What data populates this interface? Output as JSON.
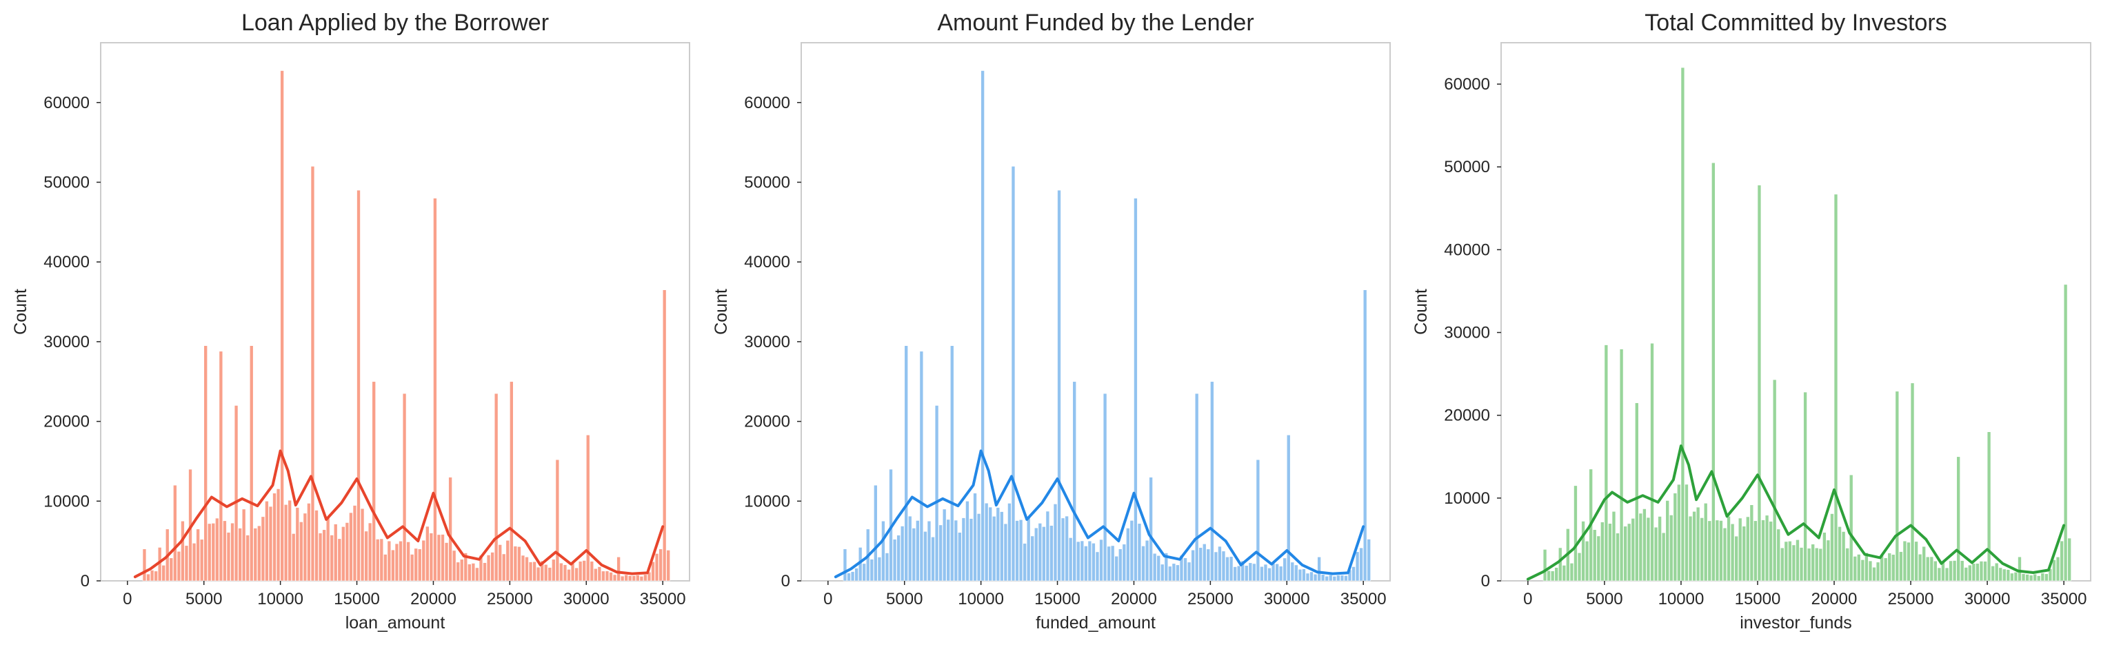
{
  "chart_data": [
    {
      "type": "histogram",
      "title": "Loan Applied by the Borrower",
      "xlabel": "loan_amount",
      "ylabel": "Count",
      "xlim": [
        -1750,
        36750
      ],
      "ylim": [
        0,
        67500
      ],
      "xticks": [
        0,
        5000,
        10000,
        15000,
        20000,
        25000,
        30000,
        35000
      ],
      "yticks": [
        0,
        10000,
        20000,
        30000,
        40000,
        50000,
        60000
      ],
      "grid": false,
      "colors": {
        "bar": "#f9a08a",
        "kde": "#e8452c"
      },
      "peaks": [
        [
          1000,
          4000
        ],
        [
          2000,
          4200
        ],
        [
          2500,
          6500
        ],
        [
          3000,
          12000
        ],
        [
          3500,
          7500
        ],
        [
          4000,
          14000
        ],
        [
          5000,
          29500
        ],
        [
          6000,
          28800
        ],
        [
          7000,
          22000
        ],
        [
          7500,
          9000
        ],
        [
          8000,
          29500
        ],
        [
          9000,
          10000
        ],
        [
          9500,
          11000
        ],
        [
          10000,
          64000
        ],
        [
          11000,
          9200
        ],
        [
          12000,
          52000
        ],
        [
          13000,
          8000
        ],
        [
          14000,
          6800
        ],
        [
          15000,
          49000
        ],
        [
          16000,
          25000
        ],
        [
          17000,
          5000
        ],
        [
          18000,
          23500
        ],
        [
          19000,
          4000
        ],
        [
          20000,
          48000
        ],
        [
          21000,
          13000
        ],
        [
          22000,
          3500
        ],
        [
          23000,
          3200
        ],
        [
          24000,
          23500
        ],
        [
          25000,
          25000
        ],
        [
          26000,
          3000
        ],
        [
          27000,
          2500
        ],
        [
          28000,
          15200
        ],
        [
          29000,
          2200
        ],
        [
          30000,
          18300
        ],
        [
          32000,
          3000
        ],
        [
          35000,
          36500
        ]
      ],
      "kde": [
        [
          500,
          500
        ],
        [
          1500,
          1500
        ],
        [
          2500,
          2900
        ],
        [
          3500,
          4900
        ],
        [
          4500,
          7800
        ],
        [
          5500,
          10500
        ],
        [
          6500,
          9300
        ],
        [
          7500,
          10300
        ],
        [
          8500,
          9400
        ],
        [
          9500,
          12000
        ],
        [
          10000,
          16300
        ],
        [
          10500,
          13800
        ],
        [
          11000,
          9500
        ],
        [
          12000,
          13100
        ],
        [
          13000,
          7700
        ],
        [
          14000,
          9800
        ],
        [
          15000,
          12800
        ],
        [
          16000,
          8900
        ],
        [
          17000,
          5400
        ],
        [
          18000,
          6800
        ],
        [
          19000,
          5000
        ],
        [
          20000,
          11000
        ],
        [
          21000,
          5800
        ],
        [
          22000,
          3100
        ],
        [
          23000,
          2700
        ],
        [
          24000,
          5200
        ],
        [
          25000,
          6600
        ],
        [
          26000,
          5000
        ],
        [
          27000,
          2000
        ],
        [
          28000,
          3600
        ],
        [
          29000,
          2100
        ],
        [
          30000,
          3800
        ],
        [
          31000,
          2000
        ],
        [
          32000,
          1100
        ],
        [
          33000,
          900
        ],
        [
          34000,
          1000
        ],
        [
          35000,
          6800
        ]
      ]
    },
    {
      "type": "histogram",
      "title": "Amount Funded by the Lender",
      "xlabel": "funded_amount",
      "ylabel": "Count",
      "xlim": [
        -1750,
        36750
      ],
      "ylim": [
        0,
        67500
      ],
      "xticks": [
        0,
        5000,
        10000,
        15000,
        20000,
        25000,
        30000,
        35000
      ],
      "yticks": [
        0,
        10000,
        20000,
        30000,
        40000,
        50000,
        60000
      ],
      "grid": false,
      "colors": {
        "bar": "#92c3f0",
        "kde": "#2287e6"
      },
      "peaks": [
        [
          1000,
          4000
        ],
        [
          2000,
          4200
        ],
        [
          2500,
          6500
        ],
        [
          3000,
          12000
        ],
        [
          3500,
          7500
        ],
        [
          4000,
          14000
        ],
        [
          5000,
          29500
        ],
        [
          6000,
          28800
        ],
        [
          7000,
          22000
        ],
        [
          7500,
          9000
        ],
        [
          8000,
          29500
        ],
        [
          9000,
          10000
        ],
        [
          9500,
          11000
        ],
        [
          10000,
          64000
        ],
        [
          11000,
          9200
        ],
        [
          12000,
          52000
        ],
        [
          13000,
          8000
        ],
        [
          14000,
          6800
        ],
        [
          15000,
          49000
        ],
        [
          16000,
          25000
        ],
        [
          17000,
          5000
        ],
        [
          18000,
          23500
        ],
        [
          19000,
          4000
        ],
        [
          20000,
          48000
        ],
        [
          21000,
          13000
        ],
        [
          22000,
          3500
        ],
        [
          23000,
          3200
        ],
        [
          24000,
          23500
        ],
        [
          25000,
          25000
        ],
        [
          26000,
          3000
        ],
        [
          27000,
          2500
        ],
        [
          28000,
          15200
        ],
        [
          29000,
          2200
        ],
        [
          30000,
          18300
        ],
        [
          32000,
          3000
        ],
        [
          35000,
          36500
        ]
      ],
      "kde": [
        [
          500,
          500
        ],
        [
          1500,
          1500
        ],
        [
          2500,
          2900
        ],
        [
          3500,
          4900
        ],
        [
          4500,
          7800
        ],
        [
          5500,
          10500
        ],
        [
          6500,
          9300
        ],
        [
          7500,
          10300
        ],
        [
          8500,
          9400
        ],
        [
          9500,
          12000
        ],
        [
          10000,
          16300
        ],
        [
          10500,
          13800
        ],
        [
          11000,
          9500
        ],
        [
          12000,
          13100
        ],
        [
          13000,
          7700
        ],
        [
          14000,
          9800
        ],
        [
          15000,
          12800
        ],
        [
          16000,
          8900
        ],
        [
          17000,
          5400
        ],
        [
          18000,
          6800
        ],
        [
          19000,
          5000
        ],
        [
          20000,
          11000
        ],
        [
          21000,
          5800
        ],
        [
          22000,
          3100
        ],
        [
          23000,
          2700
        ],
        [
          24000,
          5200
        ],
        [
          25000,
          6600
        ],
        [
          26000,
          5000
        ],
        [
          27000,
          2000
        ],
        [
          28000,
          3600
        ],
        [
          29000,
          2100
        ],
        [
          30000,
          3800
        ],
        [
          31000,
          2000
        ],
        [
          32000,
          1100
        ],
        [
          33000,
          900
        ],
        [
          34000,
          1000
        ],
        [
          35000,
          6800
        ]
      ]
    },
    {
      "type": "histogram",
      "title": "Total Committed by Investors",
      "xlabel": "investor_funds",
      "ylabel": "Count",
      "xlim": [
        -1750,
        36750
      ],
      "ylim": [
        0,
        65000
      ],
      "xticks": [
        0,
        5000,
        10000,
        15000,
        20000,
        25000,
        30000,
        35000
      ],
      "yticks": [
        0,
        10000,
        20000,
        30000,
        40000,
        50000,
        60000
      ],
      "grid": false,
      "colors": {
        "bar": "#98d59a",
        "kde": "#2da13a"
      },
      "peaks": [
        [
          1000,
          3800
        ],
        [
          2000,
          4000
        ],
        [
          2500,
          6300
        ],
        [
          3000,
          11500
        ],
        [
          3500,
          7200
        ],
        [
          4000,
          13500
        ],
        [
          5000,
          28500
        ],
        [
          6000,
          28000
        ],
        [
          7000,
          21500
        ],
        [
          7500,
          8700
        ],
        [
          8000,
          28700
        ],
        [
          9000,
          9700
        ],
        [
          9500,
          10600
        ],
        [
          10000,
          62000
        ],
        [
          11000,
          8900
        ],
        [
          12000,
          50500
        ],
        [
          13000,
          7800
        ],
        [
          14000,
          6600
        ],
        [
          15000,
          47800
        ],
        [
          16000,
          24300
        ],
        [
          17000,
          4800
        ],
        [
          18000,
          22800
        ],
        [
          19000,
          3900
        ],
        [
          20000,
          46700
        ],
        [
          21000,
          12800
        ],
        [
          22000,
          3400
        ],
        [
          23000,
          3100
        ],
        [
          24000,
          22900
        ],
        [
          25000,
          23900
        ],
        [
          26000,
          2900
        ],
        [
          27000,
          2400
        ],
        [
          28000,
          15000
        ],
        [
          29000,
          2100
        ],
        [
          30000,
          18000
        ],
        [
          32000,
          2900
        ],
        [
          35000,
          35800
        ]
      ],
      "kde": [
        [
          0,
          200
        ],
        [
          1000,
          1100
        ],
        [
          2000,
          2300
        ],
        [
          3000,
          3900
        ],
        [
          4000,
          6500
        ],
        [
          5000,
          9800
        ],
        [
          5500,
          10700
        ],
        [
          6500,
          9500
        ],
        [
          7500,
          10300
        ],
        [
          8500,
          9500
        ],
        [
          9500,
          12200
        ],
        [
          10000,
          16300
        ],
        [
          10500,
          14000
        ],
        [
          11000,
          9800
        ],
        [
          12000,
          13200
        ],
        [
          13000,
          7800
        ],
        [
          14000,
          10000
        ],
        [
          15000,
          12800
        ],
        [
          16000,
          9200
        ],
        [
          17000,
          5600
        ],
        [
          18000,
          6900
        ],
        [
          19000,
          5200
        ],
        [
          20000,
          11000
        ],
        [
          21000,
          5800
        ],
        [
          22000,
          3200
        ],
        [
          23000,
          2800
        ],
        [
          24000,
          5400
        ],
        [
          25000,
          6700
        ],
        [
          26000,
          5000
        ],
        [
          27000,
          2100
        ],
        [
          28000,
          3700
        ],
        [
          29000,
          2200
        ],
        [
          30000,
          3800
        ],
        [
          31000,
          2100
        ],
        [
          32000,
          1200
        ],
        [
          33000,
          1000
        ],
        [
          34000,
          1300
        ],
        [
          35000,
          6700
        ]
      ]
    }
  ]
}
